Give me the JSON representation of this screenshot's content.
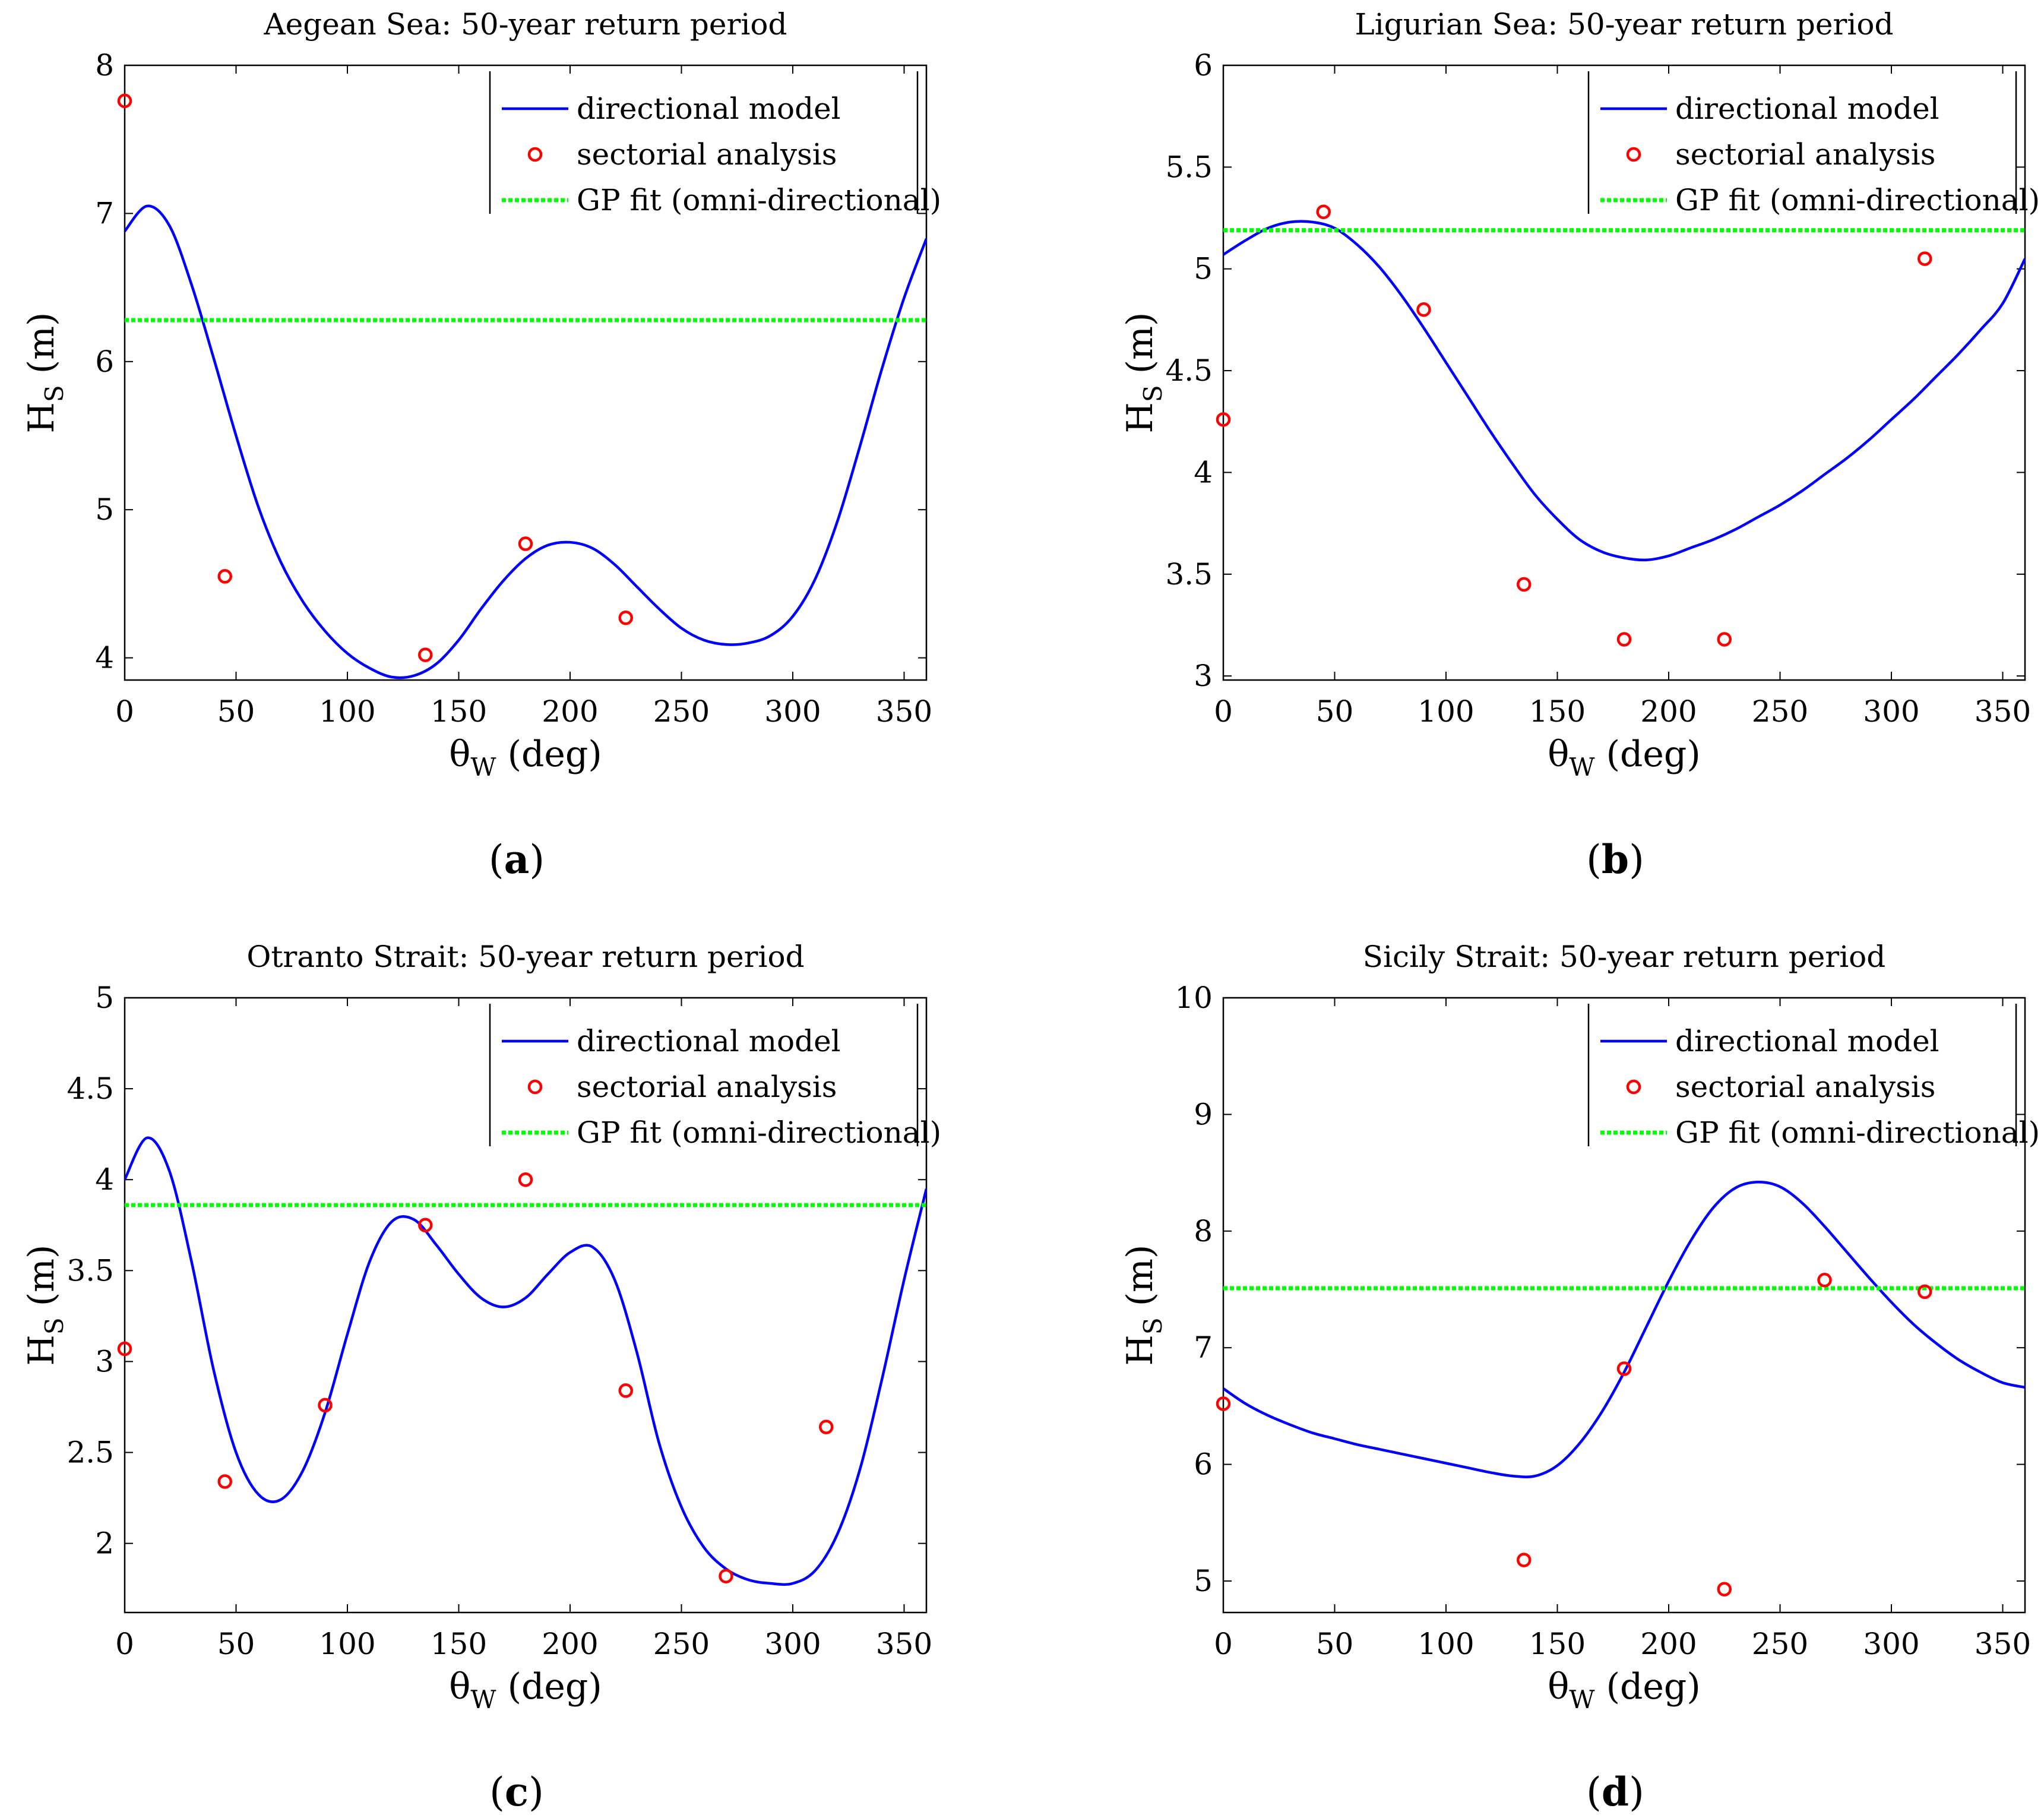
{
  "figure": {
    "common": {
      "xlabel_main": "θ",
      "xlabel_sub": "W",
      "xlabel_unit": " (deg)",
      "ylabel_main": "H",
      "ylabel_sub": "S",
      "ylabel_unit": " (m)",
      "xlim": [
        0,
        360
      ],
      "xticks": [
        "0",
        "50",
        "100",
        "150",
        "200",
        "250",
        "300",
        "350"
      ],
      "legend": {
        "directional": "directional model",
        "sectorial": "sectorial analysis",
        "gp": "GP fit (omni-directional)"
      },
      "colors": {
        "directional": "#0000ff",
        "sectorial": "#ff0000",
        "gp": "#00ff00",
        "axis": "#000000"
      }
    },
    "panels": [
      {
        "title": "Aegean Sea: 50-year return period",
        "label_open": "(",
        "label": "a",
        "label_close": ")"
      },
      {
        "title": "Ligurian Sea: 50-year return period",
        "label_open": "(",
        "label": "b",
        "label_close": ")"
      },
      {
        "title": "Otranto Strait: 50-year return period",
        "label_open": "(",
        "label": "c",
        "label_close": ")"
      },
      {
        "title": "Sicily Strait: 50-year return period",
        "label_open": "(",
        "label": "d",
        "label_close": ")"
      }
    ]
  },
  "chart_data": [
    {
      "type": "line",
      "title": "Aegean Sea: 50-year return period",
      "xlabel": "θW (deg)",
      "ylabel": "HS (m)",
      "xlim": [
        0,
        360
      ],
      "ylim": [
        3.85,
        8
      ],
      "yticks": [
        "4",
        "5",
        "6",
        "7",
        "8"
      ],
      "legend_position": "top-right",
      "series": [
        {
          "name": "directional model",
          "style": "line",
          "x": [
            0,
            10,
            20,
            30,
            40,
            50,
            60,
            70,
            80,
            90,
            100,
            110,
            120,
            130,
            140,
            150,
            160,
            170,
            180,
            190,
            200,
            210,
            220,
            230,
            240,
            250,
            260,
            270,
            280,
            290,
            300,
            310,
            320,
            330,
            340,
            350,
            360
          ],
          "y": [
            6.88,
            7.05,
            6.92,
            6.52,
            6.02,
            5.5,
            5.02,
            4.65,
            4.38,
            4.18,
            4.03,
            3.93,
            3.87,
            3.88,
            3.96,
            4.12,
            4.33,
            4.52,
            4.67,
            4.76,
            4.78,
            4.74,
            4.63,
            4.48,
            4.33,
            4.2,
            4.12,
            4.09,
            4.1,
            4.15,
            4.28,
            4.53,
            4.92,
            5.42,
            5.95,
            6.43,
            6.83
          ]
        },
        {
          "name": "sectorial analysis",
          "style": "markers",
          "x": [
            0,
            45,
            135,
            180,
            225
          ],
          "y": [
            7.76,
            4.55,
            4.02,
            4.77,
            4.27
          ]
        },
        {
          "name": "GP fit (omni-directional)",
          "style": "dashed",
          "x": [
            0,
            360
          ],
          "y": [
            6.28,
            6.28
          ]
        }
      ]
    },
    {
      "type": "line",
      "title": "Ligurian Sea: 50-year return period",
      "xlabel": "θW (deg)",
      "ylabel": "HS (m)",
      "xlim": [
        0,
        360
      ],
      "ylim": [
        2.98,
        6
      ],
      "yticks": [
        "3",
        "3.5",
        "4",
        "4.5",
        "5",
        "5.5",
        "6"
      ],
      "legend_position": "top-right",
      "series": [
        {
          "name": "directional model",
          "style": "line",
          "x": [
            0,
            10,
            20,
            30,
            40,
            50,
            60,
            70,
            80,
            90,
            100,
            110,
            120,
            130,
            140,
            150,
            160,
            170,
            180,
            190,
            200,
            210,
            220,
            230,
            240,
            250,
            260,
            270,
            280,
            290,
            300,
            310,
            320,
            330,
            340,
            350,
            360
          ],
          "y": [
            5.07,
            5.14,
            5.2,
            5.23,
            5.23,
            5.2,
            5.12,
            5.01,
            4.87,
            4.71,
            4.54,
            4.37,
            4.2,
            4.04,
            3.89,
            3.77,
            3.67,
            3.61,
            3.58,
            3.57,
            3.59,
            3.63,
            3.67,
            3.72,
            3.78,
            3.84,
            3.91,
            3.99,
            4.07,
            4.16,
            4.26,
            4.36,
            4.47,
            4.58,
            4.7,
            4.83,
            5.05
          ]
        },
        {
          "name": "sectorial analysis",
          "style": "markers",
          "x": [
            0,
            45,
            90,
            135,
            180,
            225,
            315
          ],
          "y": [
            4.26,
            5.28,
            4.8,
            3.45,
            3.18,
            3.18,
            5.05
          ]
        },
        {
          "name": "GP fit (omni-directional)",
          "style": "dashed",
          "x": [
            0,
            360
          ],
          "y": [
            5.19,
            5.19
          ]
        }
      ]
    },
    {
      "type": "line",
      "title": "Otranto Strait: 50-year return period",
      "xlabel": "θW (deg)",
      "ylabel": "HS (m)",
      "xlim": [
        0,
        360
      ],
      "ylim": [
        1.62,
        5
      ],
      "yticks": [
        "2",
        "2.5",
        "3",
        "3.5",
        "4",
        "4.5",
        "5"
      ],
      "legend_position": "top-right",
      "series": [
        {
          "name": "directional model",
          "style": "line",
          "x": [
            0,
            10,
            20,
            30,
            40,
            50,
            60,
            70,
            80,
            90,
            100,
            110,
            120,
            130,
            140,
            150,
            160,
            170,
            180,
            190,
            200,
            210,
            220,
            230,
            240,
            250,
            260,
            270,
            280,
            290,
            300,
            310,
            320,
            330,
            340,
            350,
            360
          ],
          "y": [
            4.0,
            4.23,
            4.05,
            3.55,
            2.95,
            2.5,
            2.27,
            2.24,
            2.4,
            2.72,
            3.15,
            3.55,
            3.77,
            3.78,
            3.64,
            3.48,
            3.35,
            3.3,
            3.35,
            3.48,
            3.6,
            3.63,
            3.45,
            3.05,
            2.55,
            2.2,
            1.98,
            1.86,
            1.8,
            1.78,
            1.78,
            1.85,
            2.05,
            2.4,
            2.9,
            3.45,
            3.95
          ]
        },
        {
          "name": "sectorial analysis",
          "style": "markers",
          "x": [
            0,
            45,
            90,
            135,
            180,
            225,
            270,
            315
          ],
          "y": [
            3.07,
            2.34,
            2.76,
            3.75,
            4.0,
            2.84,
            1.82,
            2.64
          ]
        },
        {
          "name": "GP fit (omni-directional)",
          "style": "dashed",
          "x": [
            0,
            360
          ],
          "y": [
            3.86,
            3.86
          ]
        }
      ]
    },
    {
      "type": "line",
      "title": "Sicily Strait: 50-year return period",
      "xlabel": "θW (deg)",
      "ylabel": "HS (m)",
      "xlim": [
        0,
        360
      ],
      "ylim": [
        4.73,
        10
      ],
      "yticks": [
        "5",
        "6",
        "7",
        "8",
        "9",
        "10"
      ],
      "legend_position": "top-right",
      "series": [
        {
          "name": "directional model",
          "style": "line",
          "x": [
            0,
            10,
            20,
            30,
            40,
            50,
            60,
            70,
            80,
            90,
            100,
            110,
            120,
            130,
            140,
            150,
            160,
            170,
            180,
            190,
            200,
            210,
            220,
            230,
            240,
            250,
            260,
            270,
            280,
            290,
            300,
            310,
            320,
            330,
            340,
            350,
            360
          ],
          "y": [
            6.65,
            6.52,
            6.42,
            6.34,
            6.27,
            6.22,
            6.17,
            6.13,
            6.09,
            6.05,
            6.01,
            5.97,
            5.93,
            5.9,
            5.9,
            5.99,
            6.18,
            6.45,
            6.79,
            7.18,
            7.57,
            7.92,
            8.2,
            8.37,
            8.42,
            8.38,
            8.24,
            8.04,
            7.82,
            7.6,
            7.39,
            7.2,
            7.04,
            6.9,
            6.79,
            6.7,
            6.66
          ]
        },
        {
          "name": "sectorial analysis",
          "style": "markers",
          "x": [
            0,
            135,
            180,
            225,
            270,
            315
          ],
          "y": [
            6.52,
            5.18,
            6.82,
            4.93,
            7.58,
            7.48
          ]
        },
        {
          "name": "GP fit (omni-directional)",
          "style": "dashed",
          "x": [
            0,
            360
          ],
          "y": [
            7.51,
            7.51
          ]
        }
      ]
    }
  ]
}
